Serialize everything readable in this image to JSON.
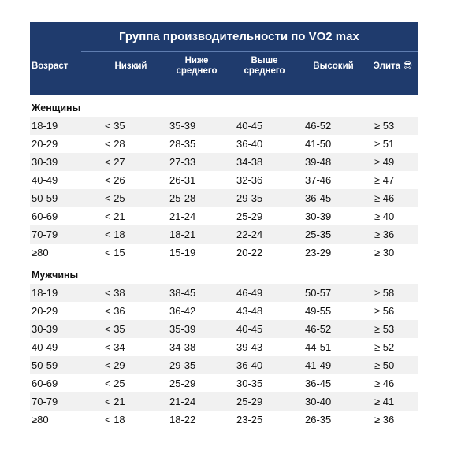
{
  "table": {
    "title": "Группа производительности по VO2 max",
    "header": [
      "Возраст",
      "Низкий",
      "Ниже среднего",
      "Выше среднего",
      "Высокий",
      "Элита 😎"
    ],
    "groups": [
      {
        "label": "Женщины",
        "rows": [
          [
            "18-19",
            "< 35",
            "35-39",
            "40-45",
            "46-52",
            "≥ 53"
          ],
          [
            "20-29",
            "< 28",
            "28-35",
            "36-40",
            "41-50",
            "≥ 51"
          ],
          [
            "30-39",
            "< 27",
            "27-33",
            "34-38",
            "39-48",
            "≥ 49"
          ],
          [
            "40-49",
            "< 26",
            "26-31",
            "32-36",
            "37-46",
            "≥ 47"
          ],
          [
            "50-59",
            "< 25",
            "25-28",
            "29-35",
            "36-45",
            "≥ 46"
          ],
          [
            "60-69",
            "< 21",
            "21-24",
            "25-29",
            "30-39",
            "≥ 40"
          ],
          [
            "70-79",
            "< 18",
            "18-21",
            "22-24",
            "25-35",
            "≥ 36"
          ],
          [
            "≥80",
            "< 15",
            "15-19",
            "20-22",
            "23-29",
            "≥ 30"
          ]
        ]
      },
      {
        "label": "Мужчины",
        "rows": [
          [
            "18-19",
            "< 38",
            "38-45",
            "46-49",
            "50-57",
            "≥ 58"
          ],
          [
            "20-29",
            "< 36",
            "36-42",
            "43-48",
            "49-55",
            "≥ 56"
          ],
          [
            "30-39",
            "< 35",
            "35-39",
            "40-45",
            "46-52",
            "≥ 53"
          ],
          [
            "40-49",
            "< 34",
            "34-38",
            "39-43",
            "44-51",
            "≥ 52"
          ],
          [
            "50-59",
            "< 29",
            "29-35",
            "36-40",
            "41-49",
            "≥ 50"
          ],
          [
            "60-69",
            "< 25",
            "25-29",
            "30-35",
            "36-45",
            "≥ 46"
          ],
          [
            "70-79",
            "< 21",
            "21-24",
            "25-29",
            "30-40",
            "≥ 41"
          ],
          [
            "≥80",
            "< 18",
            "18-22",
            "23-25",
            "26-35",
            "≥ 36"
          ]
        ]
      }
    ]
  }
}
